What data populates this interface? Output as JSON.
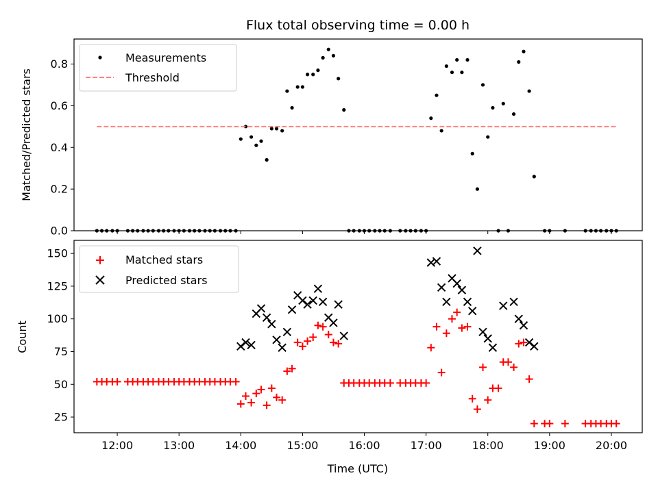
{
  "chart_data": [
    {
      "type": "scatter",
      "title": "Flux total observing time = 0.00 h",
      "xlabel": "",
      "ylabel": "Matched/Predicted stars",
      "xlim": [
        11.3,
        20.5
      ],
      "ylim": [
        0.0,
        0.92
      ],
      "yticks": [
        0.0,
        0.2,
        0.4,
        0.6,
        0.8
      ],
      "ytick_labels": [
        "0.0",
        "0.2",
        "0.4",
        "0.6",
        "0.8"
      ],
      "legend": {
        "position": "upper-left"
      },
      "series": [
        {
          "name": "Measurements",
          "marker": "dot",
          "color": "#000000",
          "x": [
            11.67,
            11.75,
            11.83,
            11.92,
            12.0,
            12.17,
            12.25,
            12.33,
            12.42,
            12.5,
            12.58,
            12.67,
            12.75,
            12.83,
            12.92,
            13.0,
            13.08,
            13.17,
            13.25,
            13.33,
            13.42,
            13.5,
            13.58,
            13.67,
            13.75,
            13.83,
            13.92,
            14.0,
            14.08,
            14.17,
            14.25,
            14.33,
            14.42,
            14.5,
            14.58,
            14.67,
            14.75,
            14.83,
            14.92,
            15.0,
            15.08,
            15.17,
            15.25,
            15.33,
            15.42,
            15.5,
            15.58,
            15.67,
            15.75,
            15.83,
            15.92,
            16.0,
            16.08,
            16.17,
            16.25,
            16.33,
            16.42,
            16.58,
            16.67,
            16.75,
            16.83,
            16.92,
            17.0,
            17.08,
            17.17,
            17.25,
            17.33,
            17.42,
            17.5,
            17.58,
            17.67,
            17.75,
            17.83,
            17.92,
            18.0,
            18.08,
            18.17,
            18.25,
            18.33,
            18.42,
            18.5,
            18.58,
            18.67,
            18.75,
            18.92,
            19.0,
            19.25,
            19.58,
            19.67,
            19.75,
            19.83,
            19.92,
            20.0,
            20.08
          ],
          "y": [
            0.0,
            0.0,
            0.0,
            0.0,
            0.0,
            0.0,
            0.0,
            0.0,
            0.0,
            0.0,
            0.0,
            0.0,
            0.0,
            0.0,
            0.0,
            0.0,
            0.0,
            0.0,
            0.0,
            0.0,
            0.0,
            0.0,
            0.0,
            0.0,
            0.0,
            0.0,
            0.0,
            0.44,
            0.5,
            0.45,
            0.41,
            0.43,
            0.34,
            0.49,
            0.49,
            0.48,
            0.67,
            0.59,
            0.69,
            0.69,
            0.75,
            0.75,
            0.77,
            0.83,
            0.87,
            0.84,
            0.73,
            0.58,
            0.0,
            0.0,
            0.0,
            0.0,
            0.0,
            0.0,
            0.0,
            0.0,
            0.0,
            0.0,
            0.0,
            0.0,
            0.0,
            0.0,
            0.0,
            0.54,
            0.65,
            0.48,
            0.79,
            0.76,
            0.82,
            0.76,
            0.82,
            0.37,
            0.2,
            0.7,
            0.45,
            0.59,
            0.0,
            0.61,
            0.0,
            0.56,
            0.81,
            0.86,
            0.67,
            0.26,
            0.0,
            0.0,
            0.0,
            0.0,
            0.0,
            0.0,
            0.0,
            0.0,
            0.0,
            0.0
          ]
        },
        {
          "name": "Threshold",
          "marker": "dashed-line",
          "color": "#ff8080",
          "x": [
            11.67,
            20.08
          ],
          "y": [
            0.5,
            0.5
          ]
        }
      ]
    },
    {
      "type": "scatter",
      "title": "",
      "xlabel": "Time (UTC)",
      "ylabel": "Count",
      "xlim": [
        11.3,
        20.5
      ],
      "ylim": [
        13,
        160
      ],
      "yticks": [
        25,
        50,
        75,
        100,
        125,
        150
      ],
      "ytick_labels": [
        "25",
        "50",
        "75",
        "100",
        "125",
        "150"
      ],
      "xticks": [
        12,
        13,
        14,
        15,
        16,
        17,
        18,
        19,
        20
      ],
      "xtick_labels": [
        "12:00",
        "13:00",
        "14:00",
        "15:00",
        "16:00",
        "17:00",
        "18:00",
        "19:00",
        "20:00"
      ],
      "legend": {
        "position": "upper-left"
      },
      "series": [
        {
          "name": "Matched stars",
          "marker": "plus",
          "color": "#ff0000",
          "x": [
            11.67,
            11.75,
            11.83,
            11.92,
            12.0,
            12.17,
            12.25,
            12.33,
            12.42,
            12.5,
            12.58,
            12.67,
            12.75,
            12.83,
            12.92,
            13.0,
            13.08,
            13.17,
            13.25,
            13.33,
            13.42,
            13.5,
            13.58,
            13.67,
            13.75,
            13.83,
            13.92,
            14.0,
            14.08,
            14.17,
            14.25,
            14.33,
            14.42,
            14.5,
            14.58,
            14.67,
            14.75,
            14.83,
            14.92,
            15.0,
            15.08,
            15.17,
            15.25,
            15.33,
            15.42,
            15.5,
            15.58,
            15.67,
            15.75,
            15.83,
            15.92,
            16.0,
            16.08,
            16.17,
            16.25,
            16.33,
            16.42,
            16.58,
            16.67,
            16.75,
            16.83,
            16.92,
            17.0,
            17.08,
            17.17,
            17.25,
            17.33,
            17.42,
            17.5,
            17.58,
            17.67,
            17.75,
            17.83,
            17.92,
            18.0,
            18.08,
            18.17,
            18.25,
            18.33,
            18.42,
            18.5,
            18.58,
            18.67,
            18.75,
            18.92,
            19.0,
            19.25,
            19.58,
            19.67,
            19.75,
            19.83,
            19.92,
            20.0,
            20.08
          ],
          "y": [
            52,
            52,
            52,
            52,
            52,
            52,
            52,
            52,
            52,
            52,
            52,
            52,
            52,
            52,
            52,
            52,
            52,
            52,
            52,
            52,
            52,
            52,
            52,
            52,
            52,
            52,
            52,
            35,
            41,
            36,
            43,
            46,
            34,
            47,
            40,
            38,
            60,
            62,
            82,
            79,
            83,
            86,
            95,
            94,
            88,
            82,
            81,
            51,
            51,
            51,
            51,
            51,
            51,
            51,
            51,
            51,
            51,
            51,
            51,
            51,
            51,
            51,
            51,
            78,
            94,
            59,
            89,
            100,
            105,
            93,
            94,
            39,
            31,
            63,
            38,
            47,
            47,
            67,
            67,
            63,
            81,
            82,
            54,
            20,
            20,
            20,
            20,
            20,
            20,
            20,
            20,
            20,
            20,
            20
          ]
        },
        {
          "name": "Predicted stars",
          "marker": "x",
          "color": "#000000",
          "x": [
            14.0,
            14.08,
            14.17,
            14.25,
            14.33,
            14.42,
            14.5,
            14.58,
            14.67,
            14.75,
            14.83,
            14.92,
            15.0,
            15.08,
            15.17,
            15.25,
            15.33,
            15.42,
            15.5,
            15.58,
            15.67,
            17.08,
            17.17,
            17.25,
            17.33,
            17.42,
            17.5,
            17.58,
            17.67,
            17.75,
            17.83,
            17.92,
            18.0,
            18.08,
            18.25,
            18.42,
            18.5,
            18.58,
            18.67,
            18.75
          ],
          "y": [
            79,
            82,
            80,
            104,
            108,
            101,
            96,
            84,
            78,
            90,
            107,
            118,
            114,
            111,
            114,
            123,
            113,
            101,
            97,
            111,
            87,
            143,
            144,
            124,
            113,
            131,
            127,
            122,
            113,
            106,
            152,
            90,
            85,
            78,
            110,
            113,
            100,
            95,
            82,
            79
          ]
        }
      ]
    }
  ]
}
